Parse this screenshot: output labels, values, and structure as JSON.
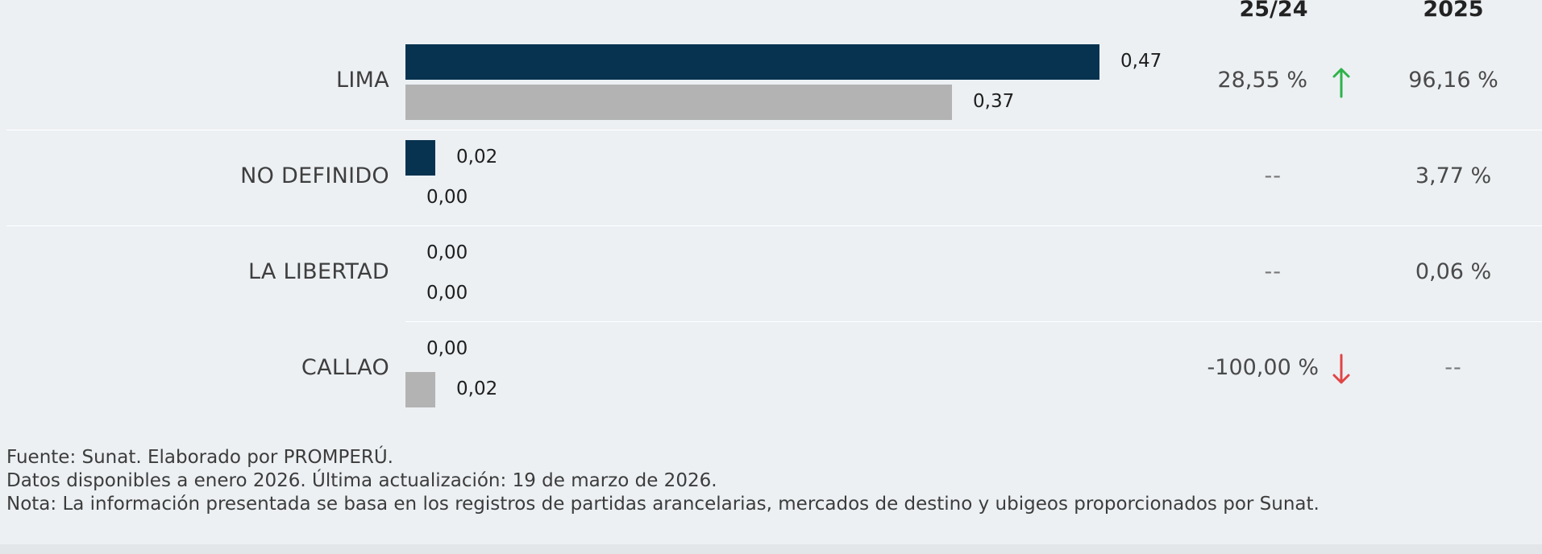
{
  "headers": {
    "variation": "25/24",
    "share": "2025"
  },
  "chart_data": {
    "type": "bar",
    "orientation": "horizontal",
    "categories": [
      "LIMA",
      "NO DEFINIDO",
      "LA LIBERTAD",
      "CALLAO"
    ],
    "series": [
      {
        "values": [
          0.47,
          0.02,
          0.0,
          0.0
        ],
        "value_labels": [
          "0,47",
          "0,02",
          "0,00",
          "0,00"
        ],
        "color": "#073350"
      },
      {
        "values": [
          0.37,
          0.0,
          0.0,
          0.02
        ],
        "value_labels": [
          "0,37",
          "0,00",
          "0,00",
          "0,02"
        ],
        "color": "#b3b3b3"
      }
    ],
    "variation_25_24": [
      "28,55 %",
      "--",
      "--",
      "-100,00 %"
    ],
    "variation_direction": [
      "up",
      "none",
      "none",
      "down"
    ],
    "share_2025": [
      "96,16 %",
      "3,77 %",
      "0,06 %",
      "--"
    ],
    "up_color": "#2db34a",
    "down_color": "#e04545"
  },
  "footer": {
    "source": "Fuente: Sunat. Elaborado por PROMPERÚ.",
    "data_note": "Datos disponibles a enero 2026. Última actualización: 19 de marzo de 2026.",
    "nota": "Nota: La información presentada se basa en los registros de partidas arancelarias, mercados de destino y ubigeos proporcionados por Sunat."
  }
}
